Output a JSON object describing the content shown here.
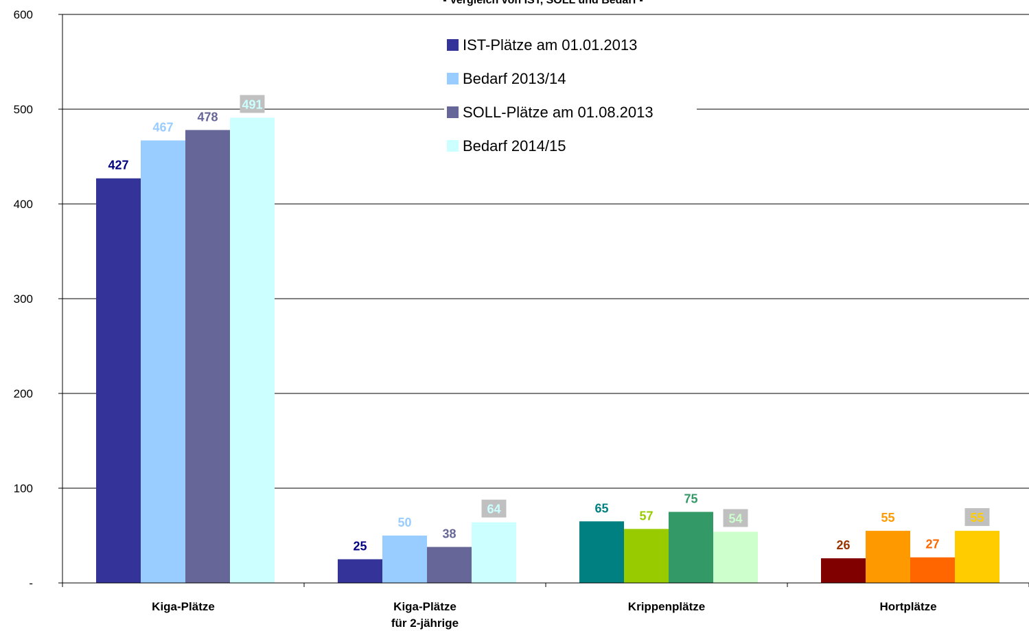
{
  "chart_data": {
    "type": "bar",
    "title": "- Vergleich von IST, SOLL und Bedarf -",
    "categories": [
      [
        "Kiga-Plätze"
      ],
      [
        "Kiga-Plätze",
        "für 2-jährige"
      ],
      [
        "Krippenplätze"
      ],
      [
        "Hortplätze"
      ]
    ],
    "series": [
      {
        "name": "IST-Plätze am 01.01.2013",
        "values": [
          427,
          25,
          65,
          26
        ]
      },
      {
        "name": "Bedarf 2013/14",
        "values": [
          467,
          50,
          57,
          55
        ]
      },
      {
        "name": "SOLL-Plätze am 01.08.2013",
        "values": [
          478,
          38,
          75,
          27
        ]
      },
      {
        "name": "Bedarf 2014/15",
        "values": [
          491,
          64,
          54,
          55
        ]
      }
    ],
    "bar_colors": [
      [
        "#333399",
        "#99ccff",
        "#666699",
        "#ccffff"
      ],
      [
        "#333399",
        "#99ccff",
        "#666699",
        "#ccffff"
      ],
      [
        "#008080",
        "#99cc00",
        "#339966",
        "#ccffcc"
      ],
      [
        "#800000",
        "#ff9900",
        "#ff6600",
        "#ffcc00"
      ]
    ],
    "label_colors": [
      [
        "#000080",
        "#99ccff",
        "#666699",
        "#ccffff"
      ],
      [
        "#000080",
        "#99ccff",
        "#666699",
        "#ccffff"
      ],
      [
        "#008080",
        "#99cc00",
        "#339966",
        "#ccffcc"
      ],
      [
        "#993300",
        "#ff9900",
        "#ff6600",
        "#ffcc00"
      ]
    ],
    "label_box_color": "#c0c0c0",
    "legend_colors": [
      "#333399",
      "#99ccff",
      "#666699",
      "#ccffff"
    ],
    "y_ticks": [
      "-",
      "100",
      "200",
      "300",
      "400",
      "500",
      "600"
    ],
    "ylim": [
      0,
      600
    ],
    "grid": true,
    "legend_position": "top-center"
  }
}
